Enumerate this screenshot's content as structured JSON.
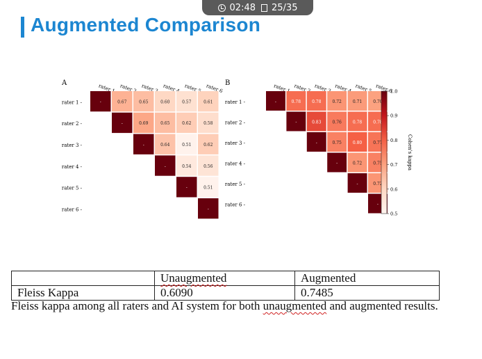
{
  "status_bar": {
    "time": "02:48",
    "slide_counter": "25/35"
  },
  "slide": {
    "title": "Augmented Comparison",
    "accent_color": "#1c86d1"
  },
  "figure": {
    "panels": [
      {
        "label": "A",
        "raters": [
          "rater 1",
          "rater 2",
          "rater 3",
          "rater 4",
          "rater 5",
          "rater 6"
        ],
        "cells": [
          [
            "-",
            "0.67",
            "0.65",
            "0.60",
            "0.57",
            "0.61"
          ],
          [
            "",
            "-",
            "0.69",
            "0.65",
            "0.62",
            "0.58"
          ],
          [
            "",
            "",
            "-",
            "0.64",
            "0.51",
            "0.62"
          ],
          [
            "",
            "",
            "",
            "-",
            "0.54",
            "0.56"
          ],
          [
            "",
            "",
            "",
            "",
            "-",
            "0.51"
          ],
          [
            "",
            "",
            "",
            "",
            "",
            "-"
          ]
        ]
      },
      {
        "label": "B",
        "raters": [
          "rater 1",
          "rater 2",
          "rater 3",
          "rater 4",
          "rater 5",
          "rater 6"
        ],
        "cells": [
          [
            "-",
            "0.78",
            "0.78",
            "0.72",
            "0.71",
            "0.70"
          ],
          [
            "",
            "-",
            "0.83",
            "0.76",
            "0.78",
            "0.78"
          ],
          [
            "",
            "",
            "-",
            "0.75",
            "0.80",
            "0.77"
          ],
          [
            "",
            "",
            "",
            "-",
            "0.72",
            "0.75"
          ],
          [
            "",
            "",
            "",
            "",
            "-",
            "0.72"
          ],
          [
            "",
            "",
            "",
            "",
            "",
            "-"
          ]
        ]
      }
    ],
    "colorbar": {
      "label": "Cohen's kappa",
      "ticks": [
        "1.0",
        "0.9",
        "0.8",
        "0.7",
        "0.6",
        "0.5"
      ],
      "range": [
        0.5,
        1.0
      ],
      "low_color": "#fff5f0",
      "high_color": "#67000d"
    }
  },
  "table": {
    "headers": [
      "",
      "Unaugmented",
      "Augmented"
    ],
    "row": {
      "label": "Fleiss Kappa",
      "unaugmented": "0.6090",
      "augmented": "0.7485"
    }
  },
  "caption": {
    "part1": "Fleiss kappa among all raters and AI system for both ",
    "part2": "unaugmented",
    "part3": " and augmented results."
  }
}
